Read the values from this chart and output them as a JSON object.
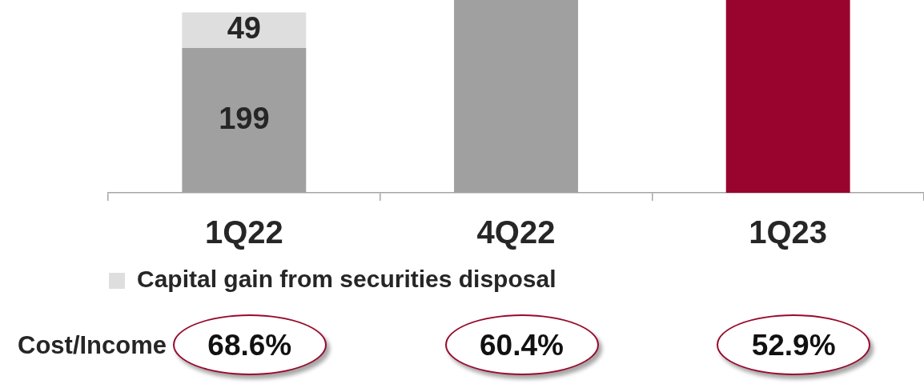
{
  "chart_data": {
    "type": "bar",
    "stacked": true,
    "categories": [
      "1Q22",
      "4Q22",
      "1Q23"
    ],
    "series": [
      {
        "colors": [
          "#a0a0a0",
          "#a0a0a0",
          "#98042e"
        ],
        "values": [
          199,
          265,
          265
        ],
        "value_labels": [
          "199",
          null,
          null
        ]
      },
      {
        "name": "Capital gain from securities disposal",
        "color": "#dedede",
        "values": [
          49,
          null,
          null
        ],
        "value_labels": [
          "49",
          null,
          null
        ]
      }
    ],
    "ylim": [
      0,
      265
    ],
    "legend": "bottom left",
    "annotations": [
      "Cost/Income",
      "68.6%",
      "60.4%",
      "52.9%"
    ]
  }
}
